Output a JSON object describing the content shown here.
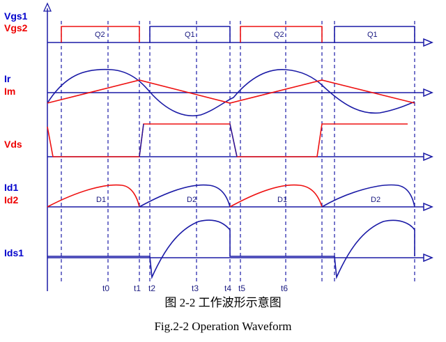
{
  "signals": {
    "vgs1": "Vgs1",
    "vgs2": "Vgs2",
    "ir": "Ir",
    "im": "Im",
    "vds": "Vds",
    "id1": "Id1",
    "id2": "Id2",
    "ids1": "Ids1"
  },
  "gate_labels": [
    "Q2",
    "Q1",
    "Q2",
    "Q1"
  ],
  "diode_labels": [
    "D1",
    "D2",
    "D1",
    "D2"
  ],
  "time_ticks": [
    "t0",
    "t1",
    "t2",
    "t3",
    "t4",
    "t5",
    "t6"
  ],
  "caption_cn": "图 2-2  工作波形示意图",
  "caption_en": "Fig.2-2 Operation Waveform",
  "colors": {
    "blue": "#1a1aa6",
    "red": "#ee1111",
    "navy": "#0000cc"
  }
}
